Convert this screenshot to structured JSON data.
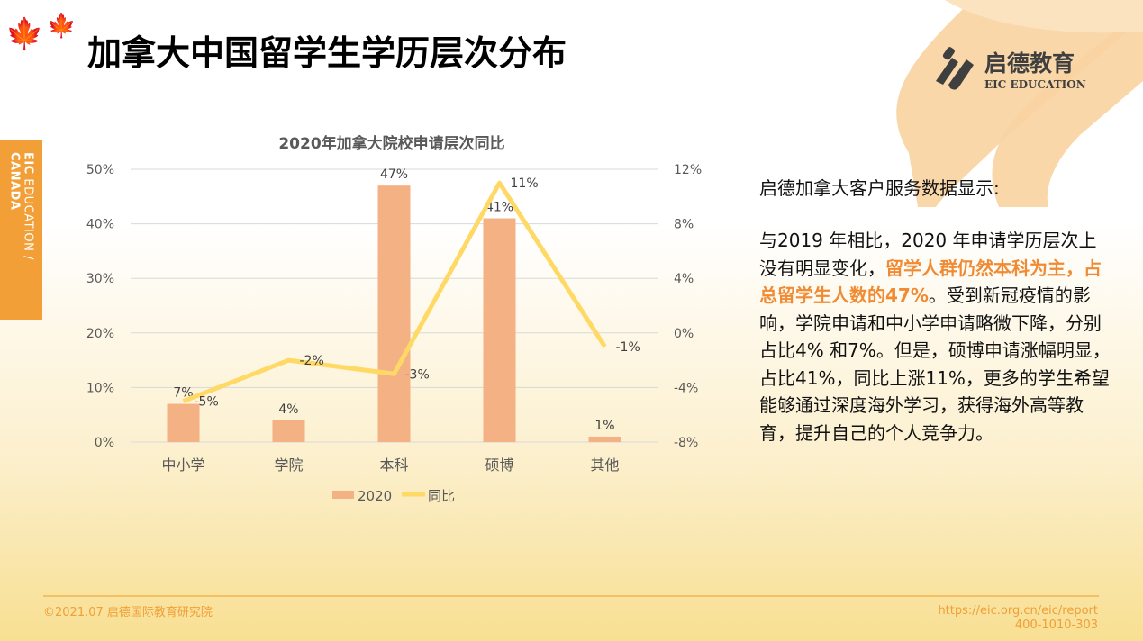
{
  "header": {
    "title": "加拿大中国留学生学历层次分布"
  },
  "sidetab": {
    "brand": "EIC",
    "rest": " EDUCATION / ",
    "country": "CANADA"
  },
  "logo": {
    "cn": "启德教育",
    "en": "EIC EDUCATION"
  },
  "chart_data": {
    "type": "bar+line",
    "title": "2020年加拿大院校申请层次同比",
    "categories": [
      "中小学",
      "学院",
      "本科",
      "硕博",
      "其他"
    ],
    "series": [
      {
        "name": "2020",
        "type": "bar",
        "axis": "left",
        "values": [
          7,
          4,
          47,
          41,
          1
        ],
        "labels": [
          "7%",
          "4%",
          "47%",
          "41%",
          "1%"
        ],
        "color": "#f4b183"
      },
      {
        "name": "同比",
        "type": "line",
        "axis": "right",
        "values": [
          -5,
          -2,
          -3,
          11,
          -1
        ],
        "labels": [
          "-5%",
          "-2%",
          "-3%",
          "11%",
          "-1%"
        ],
        "color": "#ffd966"
      }
    ],
    "left_axis": {
      "ylim": [
        0,
        50
      ],
      "ticks": [
        "0%",
        "10%",
        "20%",
        "30%",
        "40%",
        "50%"
      ]
    },
    "right_axis": {
      "ylim": [
        -8,
        12
      ],
      "ticks": [
        "-8%",
        "-4%",
        "0%",
        "4%",
        "8%",
        "12%"
      ]
    },
    "grid": true,
    "legend": "bottom"
  },
  "panel": {
    "heading": "启德加拿大客户服务数据显示:",
    "p1": "与2019 年相比，2020 年申请学历层次上没有明显变化，",
    "highlight": "留学人群仍然本科为主，占总留学生人数的47%",
    "p2": "。受到新冠疫情的影响，学院申请和中小学申请略微下降，分别占比4% 和7%。但是，硕博申请涨幅明显，占比41%，同比上涨11%，更多的学生希望能够通过深度海外学习，获得海外高等教育，提升自己的个人竞争力。"
  },
  "footer": {
    "copyright": "©2021.07 启德国际教育研究院",
    "url": "https://eic.org.cn/eic/report",
    "phone": "400-1010-303"
  }
}
